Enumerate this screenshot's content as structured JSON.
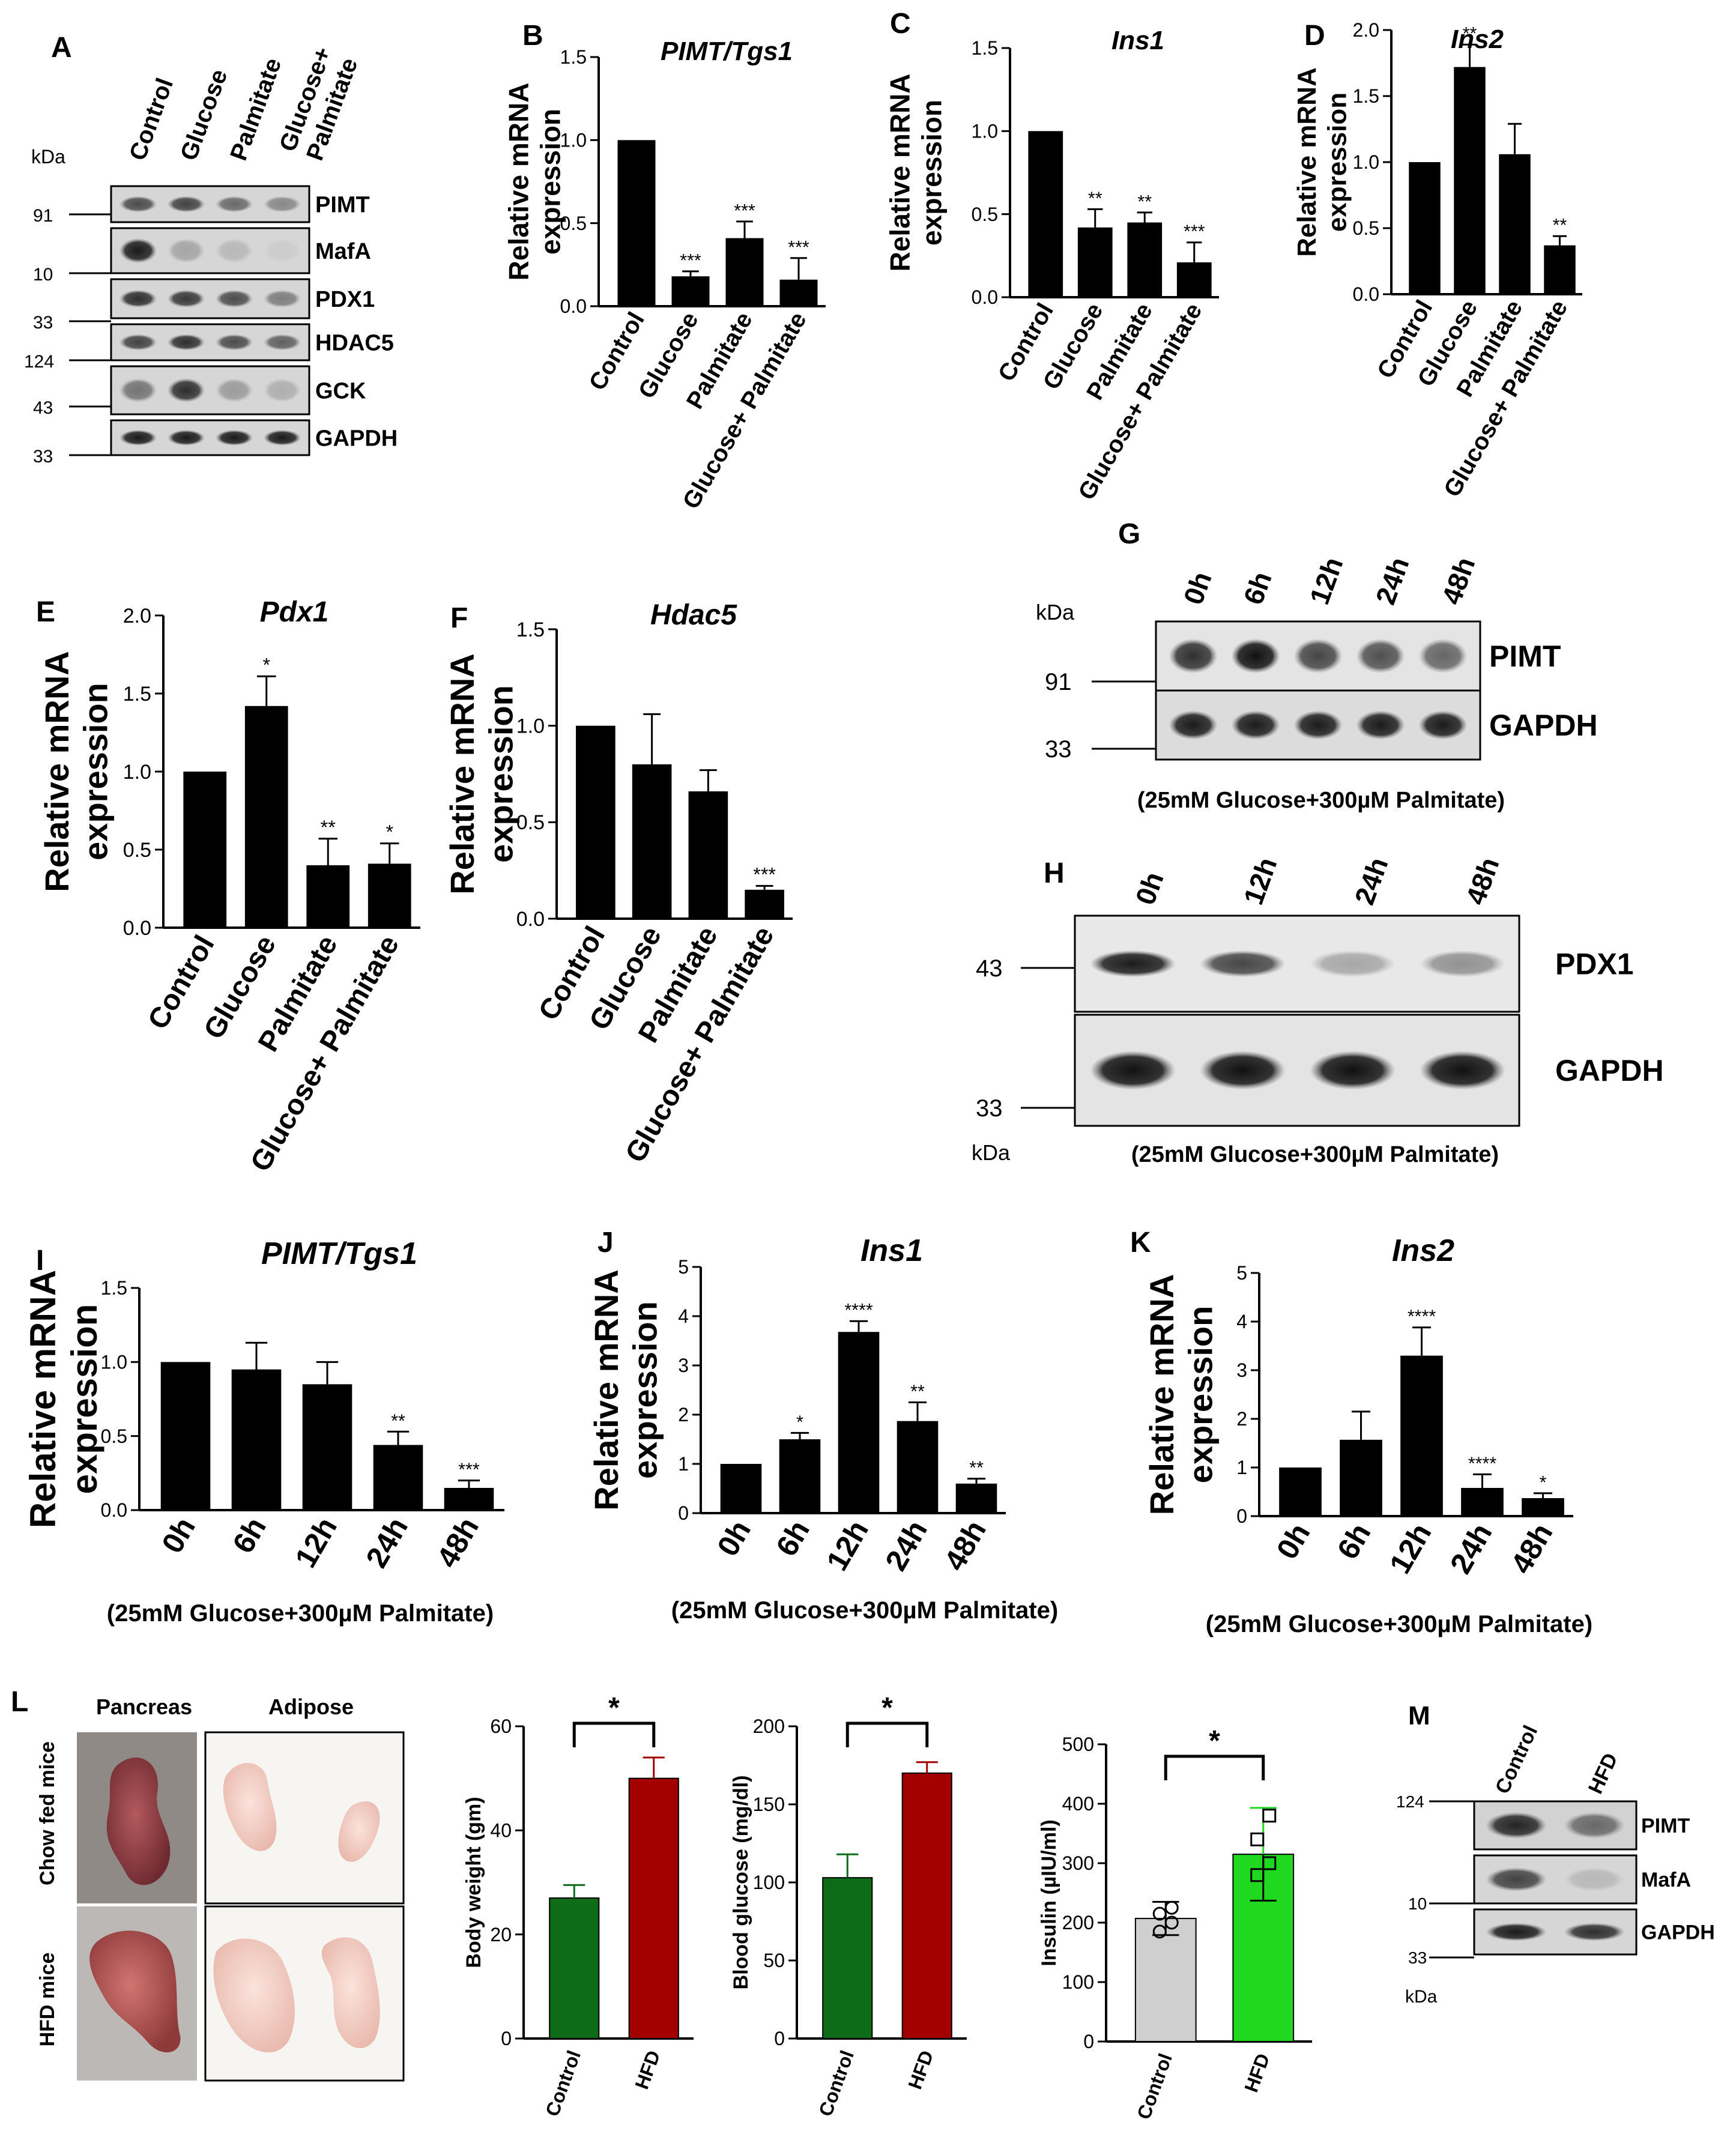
{
  "panel_letters": [
    "A",
    "B",
    "C",
    "D",
    "E",
    "F",
    "G",
    "H",
    "I",
    "J",
    "K",
    "L",
    "M"
  ],
  "common": {
    "ylabel_line1": "Relative mRNA",
    "ylabel_line2": "expression",
    "kda": "kDa",
    "treatment_note": "(25mM Glucose+300µM Palmitate)"
  },
  "blot_a": {
    "lanes": [
      "Control",
      "Glucose",
      "Palmitate",
      "Glucose+ Palmitate"
    ],
    "bands": [
      "PIMT",
      "MafA",
      "PDX1",
      "HDAC5",
      "GCK",
      "GAPDH"
    ],
    "markers": [
      "91",
      "10",
      "33",
      "124",
      "43",
      "33"
    ]
  },
  "blot_g": {
    "lanes": [
      "0h",
      "6h",
      "12h",
      "24h",
      "48h"
    ],
    "bands": [
      "PIMT",
      "GAPDH"
    ],
    "markers": [
      "91",
      "33"
    ]
  },
  "blot_h": {
    "lanes": [
      "0h",
      "12h",
      "24h",
      "48h"
    ],
    "bands": [
      "PDX1",
      "GAPDH"
    ],
    "markers": [
      "43",
      "33"
    ]
  },
  "blot_m": {
    "lanes": [
      "Control",
      "HFD"
    ],
    "bands": [
      "PIMT",
      "MafA",
      "GAPDH"
    ],
    "markers": [
      "124",
      "10",
      "33"
    ]
  },
  "photos": {
    "col_labels": [
      "Pancreas",
      "Adipose"
    ],
    "row_labels": [
      "Chow fed mice",
      "HFD mice"
    ]
  },
  "chart_data": [
    {
      "panel": "B",
      "type": "bar",
      "title": "PIMT/Tgs1",
      "ylabel": "Relative mRNA expression",
      "categories": [
        "Control",
        "Glucose",
        "Palmitate",
        "Glucose+ Palmitate"
      ],
      "values": [
        1.0,
        0.18,
        0.41,
        0.16
      ],
      "errors": [
        0,
        0.03,
        0.1,
        0.13
      ],
      "significance": [
        "",
        "***",
        "***",
        "***"
      ],
      "ylim": [
        0,
        1.5
      ],
      "yticks": [
        "0.0",
        "0.5",
        "1.0",
        "1.5"
      ],
      "bar_color": "#000000"
    },
    {
      "panel": "C",
      "type": "bar",
      "title": "Ins1",
      "ylabel": "Relative mRNA expression",
      "categories": [
        "Control",
        "Glucose",
        "Palmitate",
        "Glucose+ Palmitate"
      ],
      "values": [
        1.0,
        0.42,
        0.45,
        0.21
      ],
      "errors": [
        0,
        0.11,
        0.06,
        0.12
      ],
      "significance": [
        "",
        "**",
        "**",
        "***"
      ],
      "ylim": [
        0,
        1.5
      ],
      "yticks": [
        "0.0",
        "0.5",
        "1.0",
        "1.5"
      ],
      "bar_color": "#000000"
    },
    {
      "panel": "D",
      "type": "bar",
      "title": "Ins2",
      "ylabel": "Relative mRNA expression",
      "categories": [
        "Control",
        "Glucose",
        "Palmitate",
        "Glucose+ Palmitate"
      ],
      "values": [
        1.0,
        1.72,
        1.06,
        0.37
      ],
      "errors": [
        0,
        0.17,
        0.23,
        0.07
      ],
      "significance": [
        "",
        "**",
        "",
        "**"
      ],
      "ylim": [
        0,
        2.0
      ],
      "yticks": [
        "0.0",
        "0.5",
        "1.0",
        "1.5",
        "2.0"
      ],
      "bar_color": "#000000"
    },
    {
      "panel": "E",
      "type": "bar",
      "title": "Pdx1",
      "ylabel": "Relative mRNA expression",
      "categories": [
        "Control",
        "Glucose",
        "Palmitate",
        "Glucose+ Palmitate"
      ],
      "values": [
        1.0,
        1.42,
        0.4,
        0.41
      ],
      "errors": [
        0,
        0.19,
        0.17,
        0.13
      ],
      "significance": [
        "",
        "*",
        "**",
        "*"
      ],
      "ylim": [
        0,
        2.0
      ],
      "yticks": [
        "0.0",
        "0.5",
        "1.0",
        "1.5",
        "2.0"
      ],
      "bar_color": "#000000"
    },
    {
      "panel": "F",
      "type": "bar",
      "title": "Hdac5",
      "ylabel": "Relative mRNA expression",
      "categories": [
        "Control",
        "Glucose",
        "Palmitate",
        "Glucose+ Palmitate"
      ],
      "values": [
        1.0,
        0.8,
        0.66,
        0.15
      ],
      "errors": [
        0,
        0.26,
        0.11,
        0.02
      ],
      "significance": [
        "",
        "",
        "",
        "***"
      ],
      "ylim": [
        0,
        1.5
      ],
      "yticks": [
        "0.0",
        "0.5",
        "1.0",
        "1.5"
      ],
      "bar_color": "#000000"
    },
    {
      "panel": "I",
      "type": "bar",
      "title": "PIMT/Tgs1",
      "ylabel": "Relative mRNA expression",
      "xlabel": "(25mM Glucose+300µM Palmitate)",
      "categories": [
        "0h",
        "6h",
        "12h",
        "24h",
        "48h"
      ],
      "values": [
        1.0,
        0.95,
        0.85,
        0.44,
        0.15
      ],
      "errors": [
        0,
        0.18,
        0.15,
        0.09,
        0.05
      ],
      "significance": [
        "",
        "",
        "",
        "**",
        "***"
      ],
      "ylim": [
        0,
        1.5
      ],
      "yticks": [
        "0.0",
        "0.5",
        "1.0",
        "1.5"
      ],
      "bar_color": "#000000"
    },
    {
      "panel": "J",
      "type": "bar",
      "title": "Ins1",
      "ylabel": "Relative mRNA expression",
      "xlabel": "(25mM Glucose+300µM Palmitate)",
      "categories": [
        "0h",
        "6h",
        "12h",
        "24h",
        "48h"
      ],
      "values": [
        1.0,
        1.5,
        3.68,
        1.87,
        0.6
      ],
      "errors": [
        0,
        0.13,
        0.22,
        0.38,
        0.1
      ],
      "significance": [
        "",
        "*",
        "****",
        "**",
        "**"
      ],
      "ylim": [
        0,
        5
      ],
      "yticks": [
        "0",
        "1",
        "2",
        "3",
        "4",
        "5"
      ],
      "bar_color": "#000000"
    },
    {
      "panel": "K",
      "type": "bar",
      "title": "Ins2",
      "ylabel": "Relative mRNA expression",
      "xlabel": "(25mM Glucose+300µM Palmitate)",
      "categories": [
        "0h",
        "6h",
        "12h",
        "24h",
        "48h"
      ],
      "values": [
        1.0,
        1.57,
        3.3,
        0.58,
        0.37
      ],
      "errors": [
        0,
        0.58,
        0.58,
        0.28,
        0.1
      ],
      "significance": [
        "",
        "",
        "****",
        "****",
        "*"
      ],
      "ylim": [
        0,
        5
      ],
      "yticks": [
        "0",
        "1",
        "2",
        "3",
        "4",
        "5"
      ],
      "bar_color": "#000000"
    },
    {
      "panel": "L1",
      "type": "bar",
      "title": "",
      "ylabel": "Body weight (gm)",
      "categories": [
        "Control",
        "HFD"
      ],
      "values": [
        27,
        50
      ],
      "errors": [
        2.5,
        4
      ],
      "comparison": "*",
      "ylim": [
        0,
        60
      ],
      "yticks": [
        "0",
        "20",
        "40",
        "60"
      ],
      "bar_colors": [
        "#0e6b18",
        "#a30000"
      ]
    },
    {
      "panel": "L2",
      "type": "bar",
      "title": "",
      "ylabel": "Blood glucose (mg/dl)",
      "categories": [
        "Control",
        "HFD"
      ],
      "values": [
        103,
        170
      ],
      "errors": [
        15,
        7
      ],
      "comparison": "*",
      "ylim": [
        0,
        200
      ],
      "yticks": [
        "0",
        "50",
        "100",
        "150",
        "200"
      ],
      "bar_colors": [
        "#0e6b18",
        "#a30000"
      ]
    },
    {
      "panel": "L3",
      "type": "bar",
      "title": "",
      "ylabel": "Insulin (µIU/ml)",
      "categories": [
        "Control",
        "HFD"
      ],
      "values": [
        207,
        315
      ],
      "errors": [
        28,
        78
      ],
      "points": [
        [
          185,
          200,
          215,
          225
        ],
        [
          280,
          300,
          340,
          380
        ]
      ],
      "comparison": "*",
      "ylim": [
        0,
        500
      ],
      "yticks": [
        "0",
        "100",
        "200",
        "300",
        "400",
        "500"
      ],
      "bar_colors": [
        "#cfcfcf",
        "#1fd81f"
      ]
    }
  ]
}
